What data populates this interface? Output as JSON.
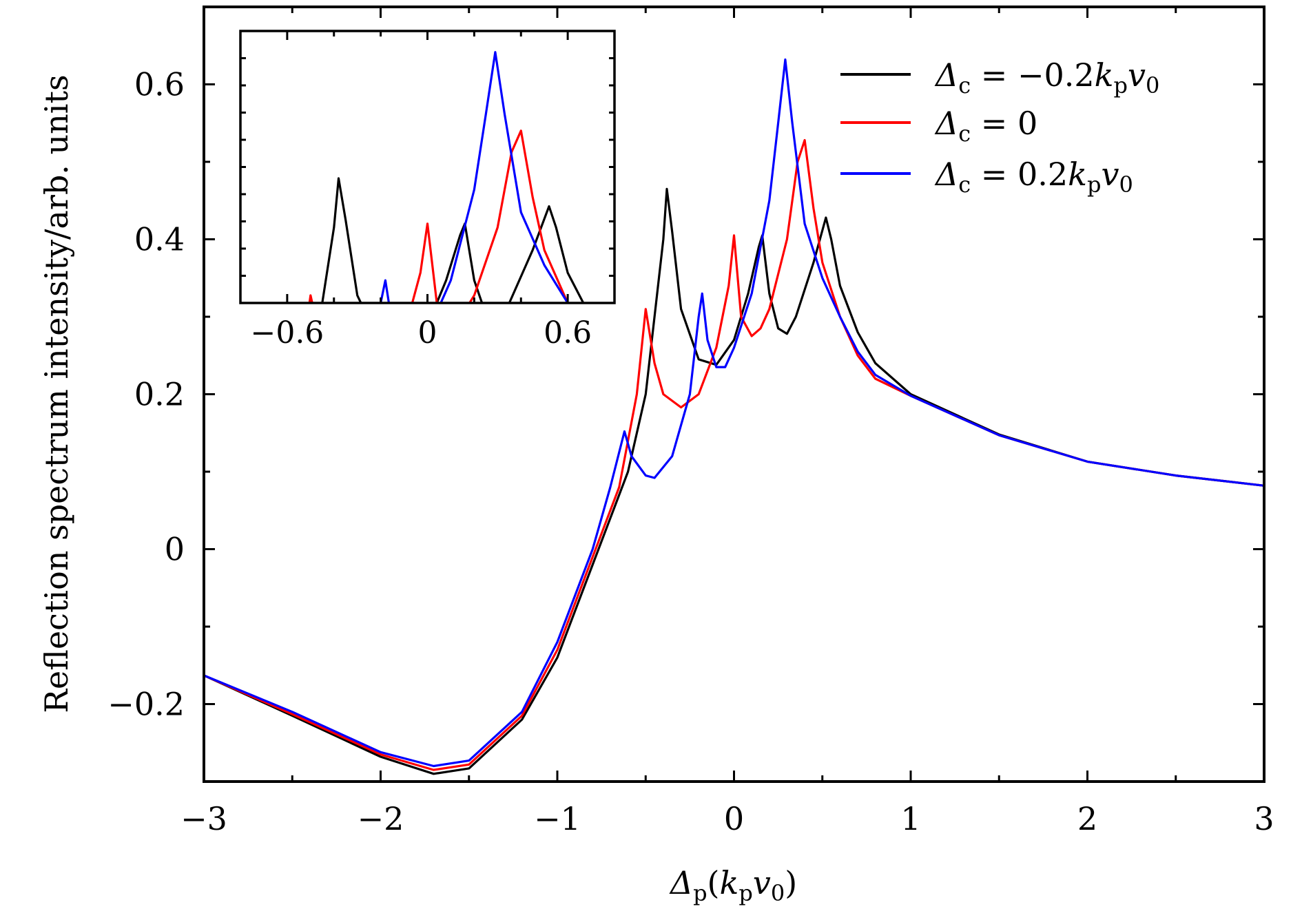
{
  "chart_data": {
    "type": "line",
    "xlabel": "Δp(kpv0)",
    "ylabel": "Reflection spectrum intensity/arb. units",
    "xlim": [
      -3,
      3
    ],
    "ylim": [
      -0.3,
      0.7
    ],
    "xticks": [
      -3,
      -2,
      -1,
      0,
      1,
      2,
      3
    ],
    "xtick_labels": [
      "−3",
      "−2",
      "−1",
      "0",
      "1",
      "2",
      "3"
    ],
    "yticks": [
      -0.2,
      0,
      0.2,
      0.4,
      0.6
    ],
    "ytick_labels": [
      "−0.2",
      "0",
      "0.2",
      "0.4",
      "0.6"
    ],
    "legend_position": "top-right",
    "grid": false,
    "series": [
      {
        "name": "Δc = −0.2kpv0",
        "color": "#000000",
        "x": [
          -3.0,
          -2.5,
          -2.0,
          -1.7,
          -1.5,
          -1.2,
          -1.0,
          -0.8,
          -0.6,
          -0.5,
          -0.45,
          -0.4,
          -0.38,
          -0.35,
          -0.3,
          -0.2,
          -0.1,
          0.0,
          0.08,
          0.14,
          0.16,
          0.2,
          0.25,
          0.3,
          0.35,
          0.45,
          0.52,
          0.55,
          0.6,
          0.7,
          0.8,
          1.0,
          1.5,
          2.0,
          2.5,
          3.0
        ],
        "y": [
          -0.163,
          -0.215,
          -0.268,
          -0.29,
          -0.283,
          -0.22,
          -0.14,
          -0.02,
          0.1,
          0.2,
          0.3,
          0.4,
          0.465,
          0.41,
          0.31,
          0.245,
          0.238,
          0.27,
          0.33,
          0.39,
          0.405,
          0.33,
          0.285,
          0.278,
          0.3,
          0.37,
          0.428,
          0.4,
          0.34,
          0.28,
          0.24,
          0.2,
          0.148,
          0.113,
          0.095,
          0.082
        ]
      },
      {
        "name": "Δc = 0",
        "color": "#ff0000",
        "x": [
          -3.0,
          -2.5,
          -2.0,
          -1.7,
          -1.5,
          -1.2,
          -1.0,
          -0.8,
          -0.65,
          -0.55,
          -0.5,
          -0.45,
          -0.4,
          -0.3,
          -0.2,
          -0.1,
          -0.03,
          0.0,
          0.04,
          0.1,
          0.15,
          0.2,
          0.3,
          0.36,
          0.4,
          0.45,
          0.5,
          0.6,
          0.7,
          0.8,
          1.0,
          1.5,
          2.0,
          2.5,
          3.0
        ],
        "y": [
          -0.163,
          -0.213,
          -0.265,
          -0.285,
          -0.278,
          -0.215,
          -0.13,
          -0.01,
          0.08,
          0.2,
          0.31,
          0.24,
          0.2,
          0.183,
          0.2,
          0.26,
          0.34,
          0.405,
          0.3,
          0.275,
          0.285,
          0.31,
          0.4,
          0.5,
          0.528,
          0.44,
          0.37,
          0.3,
          0.25,
          0.22,
          0.198,
          0.147,
          0.113,
          0.095,
          0.082
        ]
      },
      {
        "name": "Δc = 0.2kpv0",
        "color": "#0000ff",
        "x": [
          -3.0,
          -2.5,
          -2.0,
          -1.7,
          -1.5,
          -1.2,
          -1.0,
          -0.8,
          -0.7,
          -0.62,
          -0.58,
          -0.5,
          -0.45,
          -0.35,
          -0.25,
          -0.2,
          -0.18,
          -0.15,
          -0.1,
          -0.05,
          0.0,
          0.1,
          0.2,
          0.25,
          0.29,
          0.33,
          0.4,
          0.5,
          0.6,
          0.7,
          0.8,
          1.0,
          1.5,
          2.0,
          2.5,
          3.0
        ],
        "y": [
          -0.163,
          -0.21,
          -0.262,
          -0.28,
          -0.273,
          -0.21,
          -0.12,
          0.0,
          0.08,
          0.152,
          0.12,
          0.095,
          0.092,
          0.12,
          0.2,
          0.3,
          0.33,
          0.27,
          0.235,
          0.235,
          0.26,
          0.33,
          0.45,
          0.55,
          0.632,
          0.55,
          0.42,
          0.35,
          0.3,
          0.255,
          0.225,
          0.198,
          0.147,
          0.113,
          0.095,
          0.082
        ]
      }
    ],
    "inset": {
      "xlim": [
        -0.8,
        0.8
      ],
      "ylim": [
        0.3,
        0.66
      ],
      "xticks": [
        -0.6,
        0,
        0.6
      ],
      "xtick_labels": [
        "−0.6",
        "0",
        "0.6"
      ]
    }
  }
}
